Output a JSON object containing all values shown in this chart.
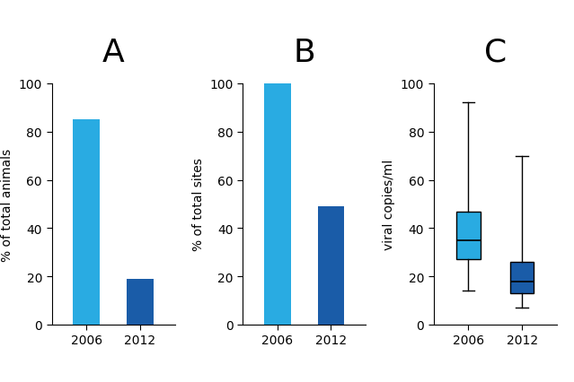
{
  "panel_A": {
    "categories": [
      "2006",
      "2012"
    ],
    "values": [
      85,
      19
    ],
    "colors": [
      "#29ABE2",
      "#1A5CA8"
    ],
    "ylabel": "% of total animals",
    "ylim": [
      0,
      100
    ],
    "yticks": [
      0,
      20,
      40,
      60,
      80,
      100
    ],
    "title": "A"
  },
  "panel_B": {
    "categories": [
      "2006",
      "2012"
    ],
    "values": [
      100,
      49
    ],
    "colors": [
      "#29ABE2",
      "#1A5CA8"
    ],
    "ylabel": "% of total sites",
    "ylim": [
      0,
      100
    ],
    "yticks": [
      0,
      20,
      40,
      60,
      80,
      100
    ],
    "title": "B"
  },
  "panel_C": {
    "title": "C",
    "ylabel": "viral copies/ml",
    "ylim": [
      0,
      100
    ],
    "yticks": [
      0,
      20,
      40,
      60,
      80,
      100
    ],
    "box_2006": {
      "whislo": 14,
      "q1": 27,
      "med": 35,
      "q3": 47,
      "whishi": 92,
      "color": "#29ABE2"
    },
    "box_2012": {
      "whislo": 7,
      "q1": 13,
      "med": 18,
      "q3": 26,
      "whishi": 70,
      "color": "#1A5CA8"
    },
    "categories": [
      "2006",
      "2012"
    ]
  },
  "title_fontsize": 26,
  "label_fontsize": 10,
  "tick_fontsize": 10,
  "background_color": "#ffffff"
}
